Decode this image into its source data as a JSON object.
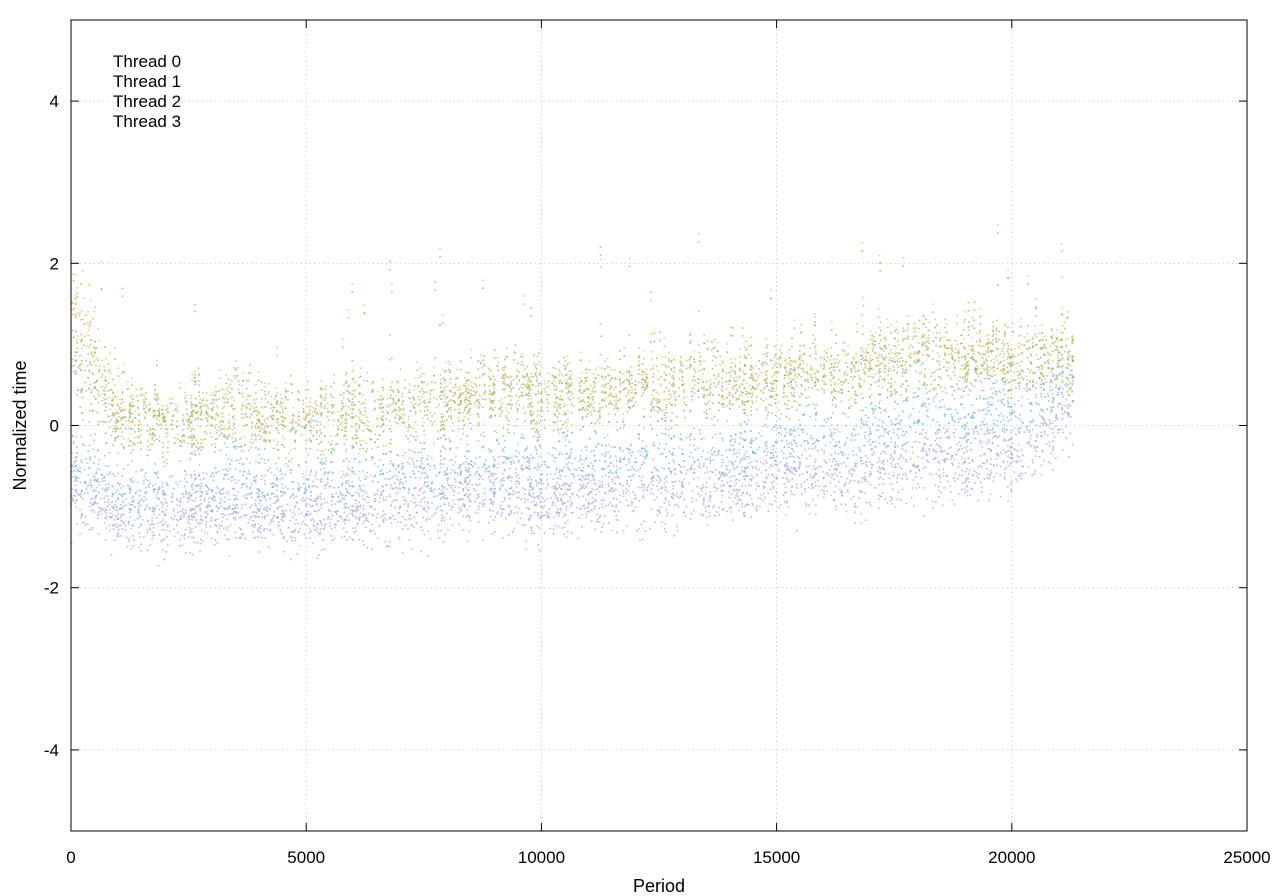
{
  "chart_data": {
    "type": "scatter",
    "title": "",
    "xlabel": "Period",
    "ylabel": "Normalized time",
    "xlim": [
      0,
      25000
    ],
    "ylim": [
      -5,
      5
    ],
    "xticks": [
      0,
      5000,
      10000,
      15000,
      20000,
      25000
    ],
    "yticks": [
      -4,
      -2,
      0,
      2,
      4
    ],
    "xtick_labels": [
      "0",
      "5000",
      "10000",
      "15000",
      "20000",
      "25000"
    ],
    "ytick_labels": [
      "-4",
      "-2",
      "0",
      "2",
      "4"
    ],
    "grid": true,
    "legend_position": "top-left",
    "series": [
      {
        "name": "Thread 0",
        "color": "#b39ddb",
        "points": [
          [
            100,
            -0.8
          ],
          [
            1000,
            -1.15
          ],
          [
            2000,
            -1.1
          ],
          [
            3000,
            -1.05
          ],
          [
            4000,
            -1.05
          ],
          [
            5000,
            -1.1
          ],
          [
            6000,
            -1.05
          ],
          [
            7000,
            -1.0
          ],
          [
            8000,
            -0.9
          ],
          [
            9000,
            -0.85
          ],
          [
            10000,
            -1.0
          ],
          [
            11000,
            -0.85
          ],
          [
            12000,
            -0.9
          ],
          [
            13000,
            -0.75
          ],
          [
            14000,
            -0.75
          ],
          [
            15000,
            -0.65
          ],
          [
            16000,
            -0.65
          ],
          [
            17000,
            -0.6
          ],
          [
            18000,
            -0.5
          ],
          [
            19000,
            -0.45
          ],
          [
            20000,
            -0.4
          ],
          [
            21000,
            -0.05
          ],
          [
            21300,
            0.3
          ]
        ]
      },
      {
        "name": "Thread 1",
        "color": "#7fb8e6",
        "points": [
          [
            100,
            -0.5
          ],
          [
            1000,
            -0.9
          ],
          [
            2000,
            -0.85
          ],
          [
            3000,
            -0.8
          ],
          [
            4000,
            -0.8
          ],
          [
            5000,
            -0.8
          ],
          [
            6000,
            -0.75
          ],
          [
            7000,
            -0.7
          ],
          [
            8000,
            -0.6
          ],
          [
            9000,
            -0.5
          ],
          [
            10000,
            -0.6
          ],
          [
            11000,
            -0.5
          ],
          [
            12000,
            -0.45
          ],
          [
            13000,
            -0.35
          ],
          [
            14000,
            -0.3
          ],
          [
            15000,
            -0.2
          ],
          [
            16000,
            -0.15
          ],
          [
            17000,
            -0.1
          ],
          [
            18000,
            0.05
          ],
          [
            19000,
            0.1
          ],
          [
            20000,
            0.15
          ],
          [
            21000,
            0.45
          ],
          [
            21300,
            0.6
          ]
        ]
      },
      {
        "name": "Thread 2",
        "color": "#8fb870",
        "points": [
          [
            100,
            0.8
          ],
          [
            1000,
            0.05
          ],
          [
            2000,
            0.05
          ],
          [
            3000,
            0.1
          ],
          [
            4000,
            0.05
          ],
          [
            5000,
            0.0
          ],
          [
            6000,
            0.1
          ],
          [
            7000,
            0.1
          ],
          [
            8000,
            0.25
          ],
          [
            9000,
            0.4
          ],
          [
            10000,
            0.3
          ],
          [
            11000,
            0.35
          ],
          [
            12000,
            0.4
          ],
          [
            13000,
            0.5
          ],
          [
            14000,
            0.55
          ],
          [
            15000,
            0.55
          ],
          [
            16000,
            0.6
          ],
          [
            17000,
            0.7
          ],
          [
            18000,
            0.8
          ],
          [
            19000,
            0.85
          ],
          [
            20000,
            0.75
          ],
          [
            21000,
            0.8
          ],
          [
            21300,
            0.8
          ]
        ]
      },
      {
        "name": "Thread 3",
        "color": "#dbb860",
        "points": [
          [
            100,
            1.5
          ],
          [
            1000,
            0.15
          ],
          [
            2000,
            0.1
          ],
          [
            3000,
            0.2
          ],
          [
            4000,
            0.15
          ],
          [
            5000,
            0.1
          ],
          [
            6000,
            0.2
          ],
          [
            7000,
            0.2
          ],
          [
            8000,
            0.35
          ],
          [
            9000,
            0.5
          ],
          [
            10000,
            0.4
          ],
          [
            11000,
            0.45
          ],
          [
            12000,
            0.5
          ],
          [
            13000,
            0.6
          ],
          [
            14000,
            0.65
          ],
          [
            15000,
            0.65
          ],
          [
            16000,
            0.7
          ],
          [
            17000,
            0.8
          ],
          [
            18000,
            0.9
          ],
          [
            19000,
            0.95
          ],
          [
            20000,
            0.85
          ],
          [
            21000,
            0.9
          ],
          [
            21300,
            0.85
          ]
        ]
      }
    ]
  }
}
